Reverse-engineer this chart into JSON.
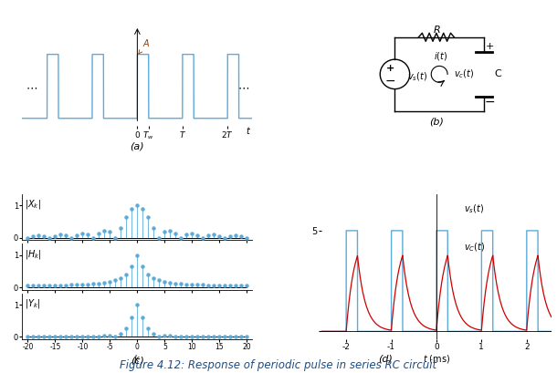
{
  "fig_width": 6.1,
  "fig_height": 4.09,
  "dpi": 100,
  "blue_color": "#5babdb",
  "red_color": "#cc0000",
  "title": "Figure 4.12: Response of periodic pulse in series RC circuit",
  "title_color": "#1a4e8a",
  "title_fontsize": 8.5,
  "panel_a_label": "(a)",
  "panel_b_label": "(b)",
  "panel_c_label": "(c)",
  "panel_d_label": "(d)",
  "k_range": [
    -20,
    20
  ],
  "T": 1.0,
  "Tw": 0.25,
  "A": 1.0,
  "tau": 0.18,
  "pulse_amplitude": 5.0,
  "d_tau": 0.18
}
